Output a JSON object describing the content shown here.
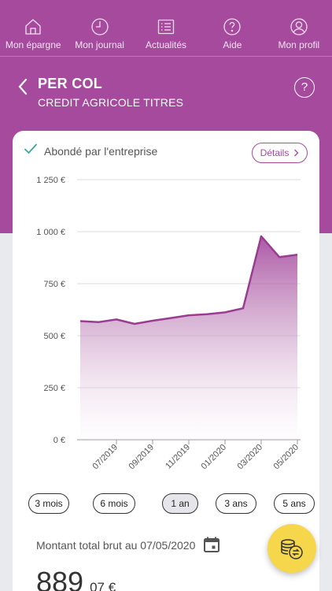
{
  "nav": {
    "items": [
      {
        "label": "Mon épargne",
        "icon": "home-icon"
      },
      {
        "label": "Mon journal",
        "icon": "clock-icon"
      },
      {
        "label": "Actualités",
        "icon": "news-list-icon"
      },
      {
        "label": "Aide",
        "icon": "help-icon"
      },
      {
        "label": "Mon profil",
        "icon": "profile-icon"
      }
    ]
  },
  "header": {
    "title": "PER COL",
    "subtitle": "CREDIT AGRICOLE TITRES",
    "help_glyph": "?"
  },
  "card": {
    "abonde_label": "Abondé par l'entreprise",
    "details_label": "Détails"
  },
  "periods": [
    {
      "label": "3 mois",
      "active": false
    },
    {
      "label": "6 mois",
      "active": false
    },
    {
      "label": "1 an",
      "active": true
    },
    {
      "label": "3 ans",
      "active": false
    },
    {
      "label": "5 ans",
      "active": false
    }
  ],
  "amount": {
    "label": "Montant total brut au 07/05/2020",
    "integer": "889",
    "decimal": "07 €"
  },
  "colors": {
    "brand": "#a64a9e",
    "accent_yellow": "#f6d64a",
    "check_green": "#3aa89a"
  },
  "chart_data": {
    "type": "area",
    "y_ticks": [
      "1 250 €",
      "1 000 €",
      "750 €",
      "500 €",
      "250 €",
      "0 €"
    ],
    "y_tick_values": [
      1250,
      1000,
      750,
      500,
      250,
      0
    ],
    "x_labels": [
      "07/2019",
      "09/2019",
      "11/2019",
      "01/2020",
      "03/2020",
      "05/2020"
    ],
    "ylim": [
      0,
      1250
    ],
    "x": [
      "05/2019",
      "06/2019",
      "07/2019",
      "08/2019",
      "09/2019",
      "10/2019",
      "11/2019",
      "12/2019",
      "01/2020",
      "02/2020",
      "03/2020",
      "04/2020",
      "05/2020"
    ],
    "values": [
      570,
      565,
      578,
      557,
      572,
      585,
      598,
      603,
      612,
      632,
      978,
      878,
      889
    ],
    "grid": true
  }
}
